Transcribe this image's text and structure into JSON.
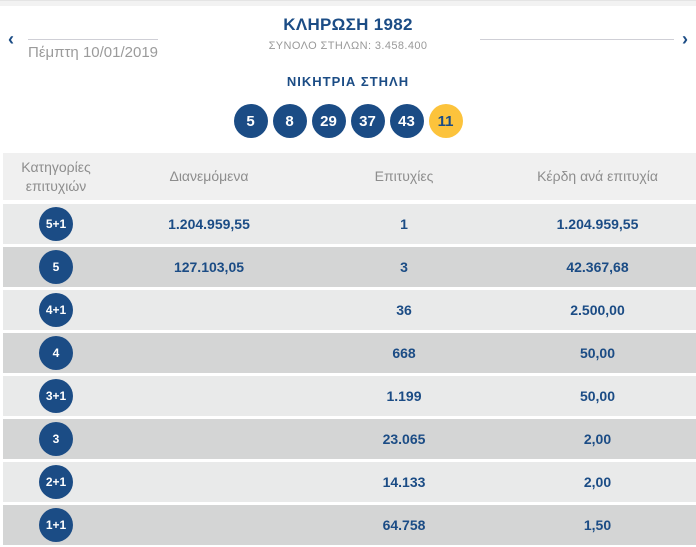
{
  "header": {
    "title": "ΚΛΗΡΩΣΗ 1982",
    "subtitle": "ΣΥΝΟΛΟ ΣΤΗΛΩΝ: 3.458.400",
    "date": "Πέμπτη 10/01/2019",
    "prev_icon": "‹",
    "next_icon": "›"
  },
  "winning": {
    "label": "ΝΙΚΗΤΡΙΑ ΣΤΗΛΗ",
    "numbers": [
      "5",
      "8",
      "29",
      "37",
      "43"
    ],
    "bonus": "11"
  },
  "table": {
    "columns": [
      "Κατηγορίες επιτυχιών",
      "Διανεμόμενα",
      "Επιτυχίες",
      "Κέρδη ανά επιτυχία"
    ],
    "rows": [
      {
        "category": "5+1",
        "distributed": "1.204.959,55",
        "winners": "1",
        "prize": "1.204.959,55"
      },
      {
        "category": "5",
        "distributed": "127.103,05",
        "winners": "3",
        "prize": "42.367,68"
      },
      {
        "category": "4+1",
        "distributed": "",
        "winners": "36",
        "prize": "2.500,00"
      },
      {
        "category": "4",
        "distributed": "",
        "winners": "668",
        "prize": "50,00"
      },
      {
        "category": "3+1",
        "distributed": "",
        "winners": "1.199",
        "prize": "50,00"
      },
      {
        "category": "3",
        "distributed": "",
        "winners": "23.065",
        "prize": "2,00"
      },
      {
        "category": "2+1",
        "distributed": "",
        "winners": "14.133",
        "prize": "2,00"
      },
      {
        "category": "1+1",
        "distributed": "",
        "winners": "64.758",
        "prize": "1,50"
      }
    ]
  },
  "colors": {
    "brand_blue": "#1b4c85",
    "bonus_yellow": "#fcc33c",
    "row_light": "#e9eaea",
    "row_dark": "#d4d5d5",
    "header_bg": "#f0f0f0",
    "muted_gray": "#8d8d8d"
  }
}
